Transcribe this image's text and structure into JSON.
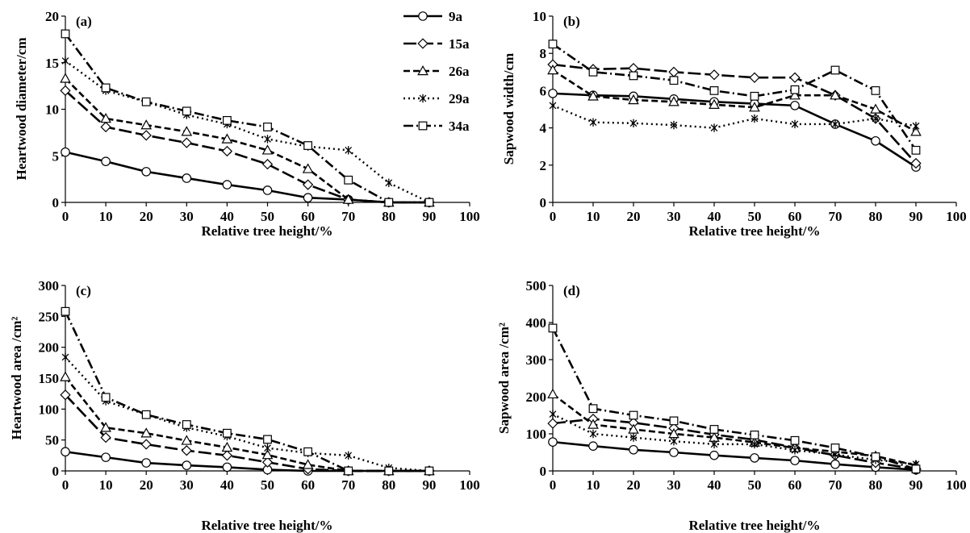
{
  "legend": {
    "entries": [
      {
        "name": "9a",
        "style": "solid",
        "marker": "circle"
      },
      {
        "name": "15a",
        "style": "longdash",
        "marker": "diamond"
      },
      {
        "name": "26a",
        "style": "dash",
        "marker": "triangle"
      },
      {
        "name": "29a",
        "style": "dot",
        "marker": "asterisk"
      },
      {
        "name": "34a",
        "style": "dashdot",
        "marker": "square"
      }
    ]
  },
  "chart_data": [
    {
      "type": "line",
      "panel_label": "(a)",
      "title": "",
      "xlabel": "Relative tree height/%",
      "ylabel": "Heartwood diameter/cm",
      "x": [
        0,
        10,
        20,
        30,
        40,
        50,
        60,
        70,
        80,
        90
      ],
      "xlim": [
        0,
        100
      ],
      "xticks": [
        "0",
        "10",
        "20",
        "30",
        "40",
        "50",
        "60",
        "70",
        "80",
        "90",
        "100"
      ],
      "ylim": [
        0,
        20
      ],
      "yticks": [
        "0",
        "5",
        "10",
        "15",
        "20"
      ],
      "grid": false,
      "series": [
        {
          "name": "9a",
          "values": [
            5.4,
            4.4,
            3.3,
            2.6,
            1.9,
            1.3,
            0.5,
            0.3,
            0,
            0
          ]
        },
        {
          "name": "15a",
          "values": [
            12.0,
            8.1,
            7.2,
            6.4,
            5.5,
            4.1,
            1.9,
            0.3,
            0,
            0
          ]
        },
        {
          "name": "26a",
          "values": [
            13.3,
            9.0,
            8.3,
            7.6,
            6.8,
            5.6,
            3.6,
            0.3,
            0,
            0
          ]
        },
        {
          "name": "29a",
          "values": [
            15.2,
            12.0,
            10.8,
            9.4,
            8.4,
            6.8,
            6.0,
            5.6,
            2.1,
            0
          ]
        },
        {
          "name": "34a",
          "values": [
            18.1,
            12.3,
            10.8,
            9.8,
            8.8,
            8.1,
            6.1,
            2.4,
            0,
            0
          ]
        }
      ]
    },
    {
      "type": "line",
      "panel_label": "(b)",
      "title": "",
      "xlabel": "Relative tree height/%",
      "ylabel": "Sapwood width/cm",
      "x": [
        0,
        10,
        20,
        30,
        40,
        50,
        60,
        70,
        80,
        90
      ],
      "xlim": [
        0,
        100
      ],
      "xticks": [
        "0",
        "10",
        "20",
        "30",
        "40",
        "50",
        "60",
        "70",
        "80",
        "90",
        "100"
      ],
      "ylim": [
        0,
        10
      ],
      "yticks": [
        "0",
        "2",
        "4",
        "6",
        "8",
        "10"
      ],
      "grid": false,
      "series": [
        {
          "name": "9a",
          "values": [
            5.85,
            5.75,
            5.7,
            5.55,
            5.4,
            5.3,
            5.2,
            4.2,
            3.3,
            1.9
          ]
        },
        {
          "name": "15a",
          "values": [
            7.4,
            7.15,
            7.2,
            7.0,
            6.85,
            6.7,
            6.7,
            5.75,
            4.5,
            2.1
          ]
        },
        {
          "name": "26a",
          "values": [
            7.1,
            5.7,
            5.5,
            5.4,
            5.25,
            5.1,
            5.75,
            5.75,
            5.0,
            3.8
          ]
        },
        {
          "name": "29a",
          "values": [
            5.2,
            4.3,
            4.25,
            4.15,
            4.0,
            4.5,
            4.2,
            4.2,
            4.5,
            4.1
          ]
        },
        {
          "name": "34a",
          "values": [
            8.5,
            7.0,
            6.8,
            6.55,
            6.0,
            5.7,
            6.05,
            7.1,
            6.0,
            2.8
          ]
        }
      ]
    },
    {
      "type": "line",
      "panel_label": "(c)",
      "title": "",
      "xlabel": "Relative tree height/%",
      "ylabel": "Heartwood area /cm²",
      "x": [
        0,
        10,
        20,
        30,
        40,
        50,
        60,
        70,
        80,
        90
      ],
      "xlim": [
        0,
        100
      ],
      "xticks": [
        "0",
        "10",
        "20",
        "30",
        "40",
        "50",
        "60",
        "70",
        "80",
        "90",
        "100"
      ],
      "ylim": [
        0,
        300
      ],
      "yticks": [
        "0",
        "50",
        "100",
        "150",
        "200",
        "250",
        "300"
      ],
      "grid": false,
      "series": [
        {
          "name": "9a",
          "values": [
            31,
            22,
            13,
            9,
            6,
            2,
            0,
            0,
            0,
            0
          ]
        },
        {
          "name": "15a",
          "values": [
            123,
            54,
            43,
            33,
            25,
            14,
            3,
            0,
            0,
            0
          ]
        },
        {
          "name": "26a",
          "values": [
            152,
            70,
            61,
            49,
            38,
            26,
            10,
            0,
            0,
            0
          ]
        },
        {
          "name": "29a",
          "values": [
            184,
            113,
            91,
            70,
            56,
            37,
            29,
            25,
            5,
            0
          ]
        },
        {
          "name": "34a",
          "values": [
            258,
            119,
            91,
            75,
            61,
            51,
            31,
            0,
            0,
            0
          ]
        }
      ]
    },
    {
      "type": "line",
      "panel_label": "(d)",
      "title": "",
      "xlabel": "Relative tree height/%",
      "ylabel": "Sapwood area /cm²",
      "x": [
        0,
        10,
        20,
        30,
        40,
        50,
        60,
        70,
        80,
        90
      ],
      "xlim": [
        0,
        100
      ],
      "xticks": [
        "0",
        "10",
        "20",
        "30",
        "40",
        "50",
        "60",
        "70",
        "80",
        "90",
        "100"
      ],
      "ylim": [
        0,
        500
      ],
      "yticks": [
        "0",
        "100",
        "200",
        "300",
        "400",
        "500"
      ],
      "grid": false,
      "series": [
        {
          "name": "9a",
          "values": [
            78,
            67,
            57,
            50,
            42,
            35,
            28,
            18,
            10,
            3
          ]
        },
        {
          "name": "15a",
          "values": [
            128,
            140,
            130,
            115,
            98,
            84,
            63,
            42,
            22,
            5
          ]
        },
        {
          "name": "26a",
          "values": [
            207,
            125,
            112,
            100,
            90,
            77,
            62,
            52,
            40,
            15
          ]
        },
        {
          "name": "29a",
          "values": [
            153,
            100,
            90,
            80,
            72,
            72,
            56,
            44,
            30,
            18
          ]
        },
        {
          "name": "34a",
          "values": [
            385,
            168,
            150,
            135,
            112,
            97,
            82,
            62,
            38,
            5
          ]
        }
      ]
    }
  ]
}
